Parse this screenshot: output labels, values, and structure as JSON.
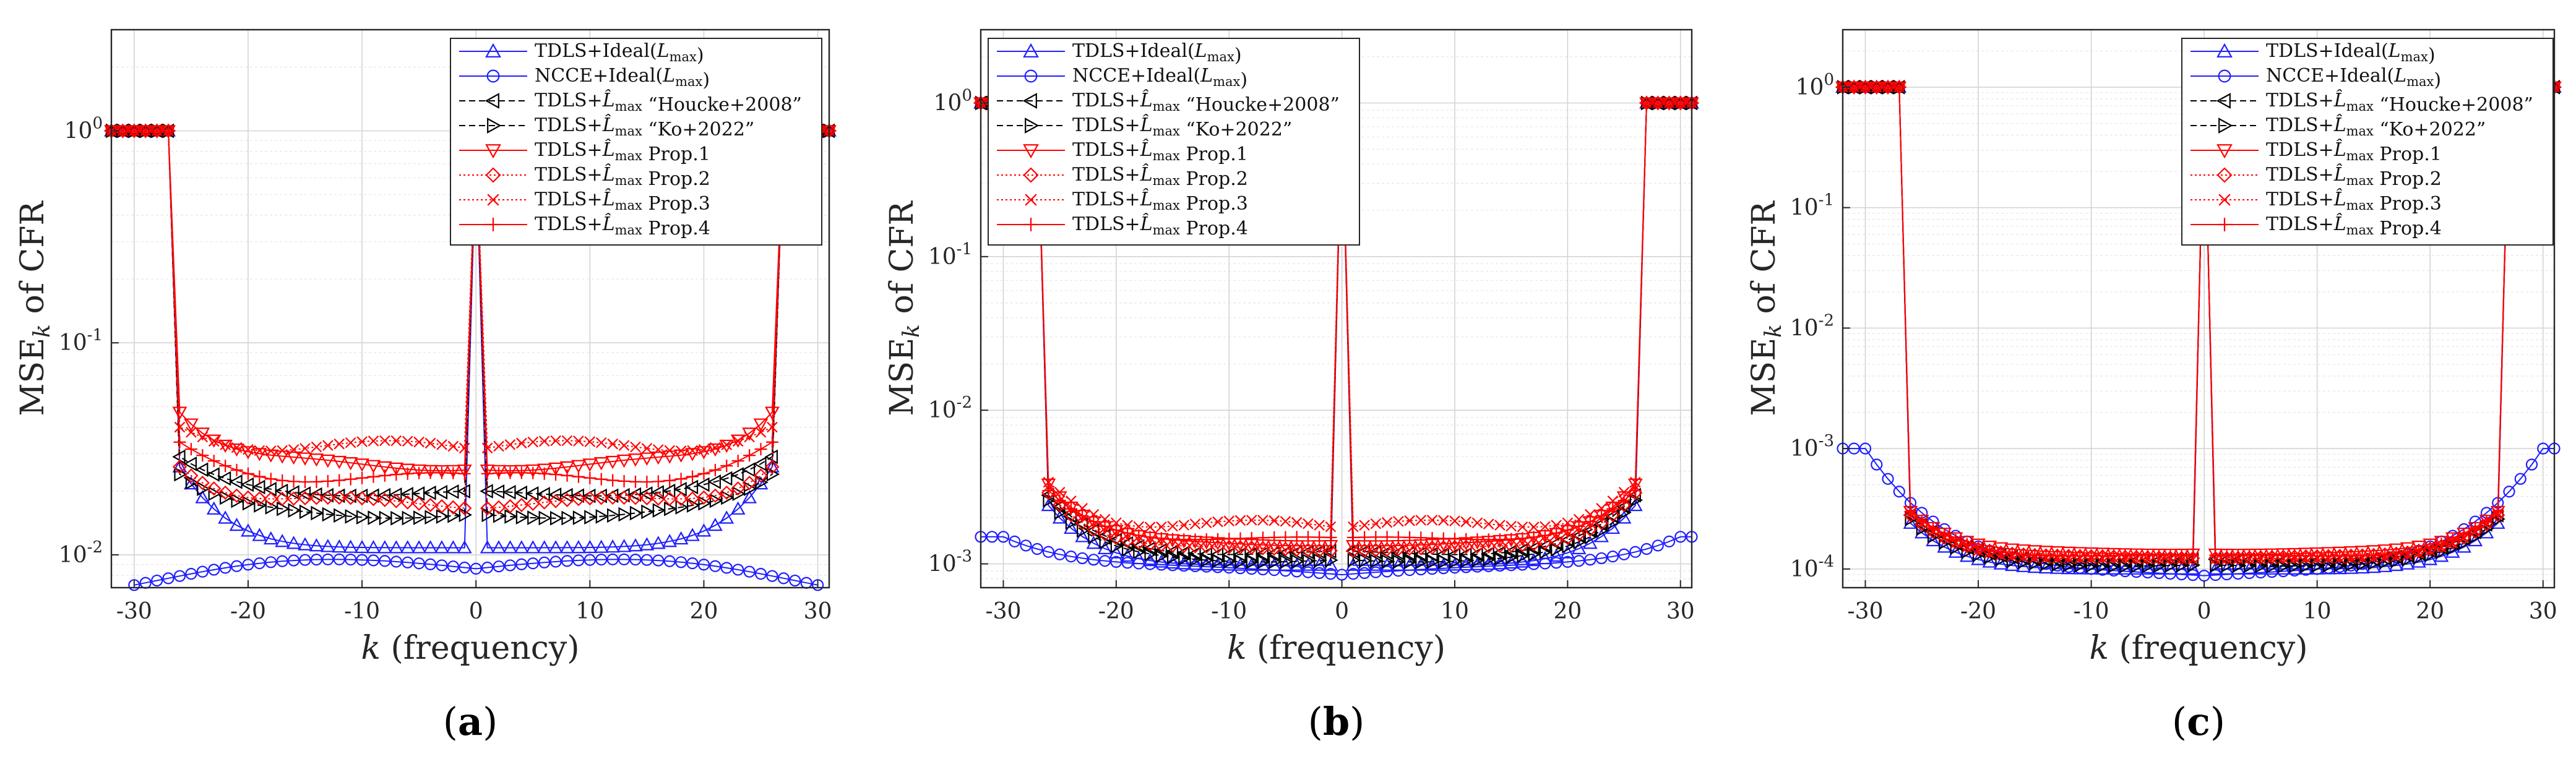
{
  "figure": {
    "captions": [
      "(a)",
      "(b)",
      "(c)"
    ],
    "xlabel": "k (frequency)",
    "ylabel": "MSE_k of CFR"
  },
  "series_styles": [
    {
      "key": "ideal_tdls",
      "color": "#1f1fff",
      "marker": "triangle-up",
      "dash": "solid"
    },
    {
      "key": "ideal_ncce",
      "color": "#1f1fff",
      "marker": "circle",
      "dash": "solid"
    },
    {
      "key": "houcke",
      "color": "#000000",
      "marker": "triangle-left",
      "dash": "dashed"
    },
    {
      "key": "ko",
      "color": "#000000",
      "marker": "triangle-right",
      "dash": "dashed"
    },
    {
      "key": "prop1",
      "color": "#ff0000",
      "marker": "triangle-down",
      "dash": "solid"
    },
    {
      "key": "prop2",
      "color": "#ff0000",
      "marker": "diamond",
      "dash": "dotted"
    },
    {
      "key": "prop3",
      "color": "#ff0000",
      "marker": "x",
      "dash": "dotted"
    },
    {
      "key": "prop4",
      "color": "#ff0000",
      "marker": "plus",
      "dash": "solid"
    }
  ],
  "chart_data": [
    {
      "id": "a",
      "type": "line",
      "caption": "(a)",
      "title": "",
      "xlabel": "k (frequency)",
      "ylabel": "MSE_k of CFR",
      "xlim": [
        -32,
        31
      ],
      "ylim": [
        0.007,
        3
      ],
      "yscale": "log",
      "grid": true,
      "legend_position": "top-right",
      "xticks": [
        -30,
        -20,
        -10,
        0,
        10,
        20,
        30
      ],
      "yticks": [
        {
          "v": 0.01,
          "b": "10",
          "e": "-2"
        },
        {
          "v": 0.1,
          "b": "10",
          "e": "-1"
        },
        {
          "v": 1,
          "b": "10",
          "e": "0"
        }
      ],
      "legend": [
        "TDLS+Ideal(L_max)",
        "NCCE+Ideal(L_max)",
        "TDLS+L̂_max “Houcke+2008”",
        "TDLS+L̂_max “Ko+2022”",
        "TDLS+L̂_max Prop.1",
        "TDLS+L̂_max Prop.2",
        "TDLS+L̂_max Prop.3",
        "TDLS+L̂_max Prop.4"
      ],
      "guard_value": 1,
      "dc_value": 0.9,
      "active_range": [
        -26,
        26
      ],
      "series": [
        {
          "name": "TDLS+Ideal(L_max)",
          "edge": 0.026,
          "center": 0.0108,
          "ripple": 0.0
        },
        {
          "name": "NCCE+Ideal(L_max)",
          "edge": 0.0072,
          "center": 0.0086,
          "ripple": 0.0,
          "full_range": [
            -30,
            30
          ],
          "shape": "ncce_a"
        },
        {
          "name": "TDLS+L̂_max “Houcke+2008”",
          "edge": 0.029,
          "center": 0.0195,
          "ripple": 0.03
        },
        {
          "name": "TDLS+L̂_max “Ko+2022”",
          "edge": 0.024,
          "center": 0.0155,
          "ripple": 0.04
        },
        {
          "name": "TDLS+L̂_max Prop.1",
          "edge": 0.047,
          "center": 0.0265,
          "ripple": 0.06
        },
        {
          "name": "TDLS+L̂_max Prop.2",
          "edge": 0.026,
          "center": 0.0175,
          "ripple": 0.06
        },
        {
          "name": "TDLS+L̂_max Prop.3",
          "edge": 0.04,
          "center": 0.032,
          "ripple": 0.08
        },
        {
          "name": "TDLS+L̂_max Prop.4",
          "edge": 0.034,
          "center": 0.023,
          "ripple": 0.06
        }
      ]
    },
    {
      "id": "b",
      "type": "line",
      "caption": "(b)",
      "title": "",
      "xlabel": "k (frequency)",
      "ylabel": "MSE_k of CFR",
      "xlim": [
        -32,
        31
      ],
      "ylim": [
        0.0007,
        3
      ],
      "yscale": "log",
      "grid": true,
      "legend_position": "top-left",
      "xticks": [
        -30,
        -20,
        -10,
        0,
        10,
        20,
        30
      ],
      "yticks": [
        {
          "v": 0.001,
          "b": "10",
          "e": "-3"
        },
        {
          "v": 0.01,
          "b": "10",
          "e": "-2"
        },
        {
          "v": 0.1,
          "b": "10",
          "e": "-1"
        },
        {
          "v": 1,
          "b": "10",
          "e": "0"
        }
      ],
      "legend": [
        "TDLS+Ideal(L_max)",
        "NCCE+Ideal(L_max)",
        "TDLS+L̂_max “Houcke+2008”",
        "TDLS+L̂_max “Ko+2022”",
        "TDLS+L̂_max Prop.1",
        "TDLS+L̂_max Prop.2",
        "TDLS+L̂_max Prop.3",
        "TDLS+L̂_max Prop.4"
      ],
      "guard_value": 1,
      "dc_value": 1,
      "active_range": [
        -26,
        26
      ],
      "series": [
        {
          "name": "TDLS+Ideal(L_max)",
          "edge": 0.0024,
          "center": 0.00098,
          "ripple": 0.0
        },
        {
          "name": "NCCE+Ideal(L_max)",
          "edge": 0.0015,
          "center": 0.00085,
          "ripple": 0.0,
          "full_range": [
            -32,
            31
          ],
          "shape": "ncce_b"
        },
        {
          "name": "TDLS+L̂_max “Houcke+2008”",
          "edge": 0.0028,
          "center": 0.00118,
          "ripple": 0.03
        },
        {
          "name": "TDLS+L̂_max “Ko+2022”",
          "edge": 0.0026,
          "center": 0.00106,
          "ripple": 0.03
        },
        {
          "name": "TDLS+L̂_max Prop.1",
          "edge": 0.0033,
          "center": 0.00135,
          "ripple": 0.03
        },
        {
          "name": "TDLS+L̂_max Prop.2",
          "edge": 0.0029,
          "center": 0.00125,
          "ripple": 0.03
        },
        {
          "name": "TDLS+L̂_max Prop.3",
          "edge": 0.0034,
          "center": 0.00175,
          "ripple": 0.1
        },
        {
          "name": "TDLS+L̂_max Prop.4",
          "edge": 0.003,
          "center": 0.00145,
          "ripple": 0.03
        }
      ]
    },
    {
      "id": "c",
      "type": "line",
      "caption": "(c)",
      "title": "",
      "xlabel": "k (frequency)",
      "ylabel": "MSE_k of CFR",
      "xlim": [
        -32,
        31
      ],
      "ylim": [
        7e-05,
        3
      ],
      "yscale": "log",
      "grid": true,
      "legend_position": "top-right",
      "xticks": [
        -30,
        -20,
        -10,
        0,
        10,
        20,
        30
      ],
      "yticks": [
        {
          "v": 0.0001,
          "b": "10",
          "e": "-4"
        },
        {
          "v": 0.001,
          "b": "10",
          "e": "-3"
        },
        {
          "v": 0.01,
          "b": "10",
          "e": "-2"
        },
        {
          "v": 0.1,
          "b": "10",
          "e": "-1"
        },
        {
          "v": 1,
          "b": "10",
          "e": "0"
        }
      ],
      "legend": [
        "TDLS+Ideal(L_max)",
        "NCCE+Ideal(L_max)",
        "TDLS+L̂_max “Houcke+2008”",
        "TDLS+L̂_max “Ko+2022”",
        "TDLS+L̂_max Prop.1",
        "TDLS+L̂_max Prop.2",
        "TDLS+L̂_max Prop.3",
        "TDLS+L̂_max Prop.4"
      ],
      "guard_value": 1,
      "dc_value": 1,
      "active_range": [
        -26,
        26
      ],
      "series": [
        {
          "name": "TDLS+Ideal(L_max)",
          "edge": 0.00024,
          "center": 0.0001,
          "ripple": 0.0
        },
        {
          "name": "NCCE+Ideal(L_max)",
          "edge": 0.001,
          "center": 8.8e-05,
          "ripple": 0.0,
          "full_range": [
            -32,
            31
          ],
          "shape": "ncce_c"
        },
        {
          "name": "TDLS+L̂_max “Houcke+2008”",
          "edge": 0.00028,
          "center": 0.000118,
          "ripple": 0.02
        },
        {
          "name": "TDLS+L̂_max “Ko+2022”",
          "edge": 0.00026,
          "center": 0.000108,
          "ripple": 0.02
        },
        {
          "name": "TDLS+L̂_max Prop.1",
          "edge": 0.0003,
          "center": 0.000135,
          "ripple": 0.02
        },
        {
          "name": "TDLS+L̂_max Prop.2",
          "edge": 0.00028,
          "center": 0.000125,
          "ripple": 0.02
        },
        {
          "name": "TDLS+L̂_max Prop.3",
          "edge": 0.00029,
          "center": 0.00012,
          "ripple": 0.02
        },
        {
          "name": "TDLS+L̂_max Prop.4",
          "edge": 0.0003,
          "center": 0.000128,
          "ripple": 0.02
        }
      ]
    }
  ]
}
